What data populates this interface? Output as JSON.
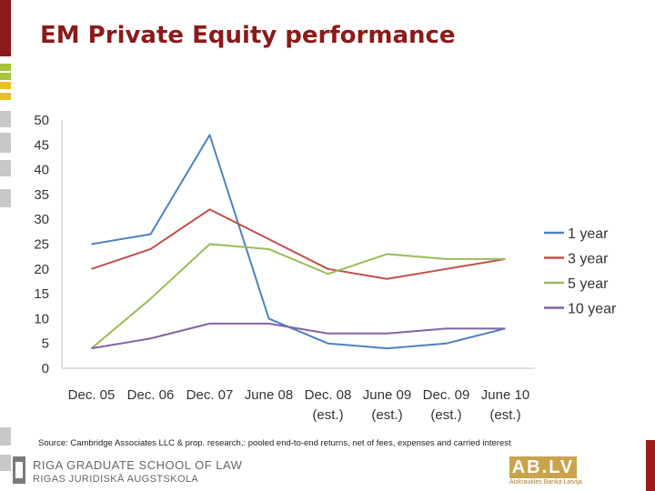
{
  "page": {
    "title": "EM Private Equity performance",
    "source_note": "Source: Cambridge Associates LLC & prop. research,: pooled end-to-end returns, net of fees, expenses and carried interest",
    "footer": {
      "school_name": "RIGA GRADUATE SCHOOL OF LAW",
      "school_subname": "RIGAS JURIDISKĀ AUGSTSKOLA",
      "bank_logo": "AB.LV",
      "bank_tagline": "Aizkraukles Banka Latvija"
    },
    "colors": {
      "title": "#8b1a1a",
      "accent_dark_red": "#8b1a1a",
      "accent_green": "#a8c43a",
      "accent_yellow": "#e8c020",
      "accent_gray": "#c8c8c8"
    }
  },
  "chart_data": {
    "type": "line",
    "categories": [
      [
        "Dec. 05"
      ],
      [
        "Dec. 06"
      ],
      [
        "Dec. 07"
      ],
      [
        "June 08"
      ],
      [
        "Dec. 08",
        "(est.)"
      ],
      [
        "June 09",
        "(est.)"
      ],
      [
        "Dec. 09",
        "(est.)"
      ],
      [
        "June 10",
        "(est.)"
      ]
    ],
    "ylim": [
      0,
      50
    ],
    "yticks": [
      0,
      5,
      10,
      15,
      20,
      25,
      30,
      35,
      40,
      45,
      50
    ],
    "series": [
      {
        "name": "1 year",
        "color": "#4f81bd",
        "values": [
          25,
          27,
          47,
          10,
          5,
          4,
          5,
          8
        ]
      },
      {
        "name": "3 year",
        "color": "#c0504d",
        "values": [
          20,
          24,
          32,
          26,
          20,
          18,
          20,
          22
        ]
      },
      {
        "name": "5 year",
        "color": "#9bbb59",
        "values": [
          4,
          14,
          25,
          24,
          19,
          23,
          22,
          22
        ]
      },
      {
        "name": "10 year",
        "color": "#8064a2",
        "values": [
          4,
          6,
          9,
          9,
          7,
          7,
          8,
          8
        ]
      }
    ],
    "legend_position": "right",
    "grid": false
  }
}
